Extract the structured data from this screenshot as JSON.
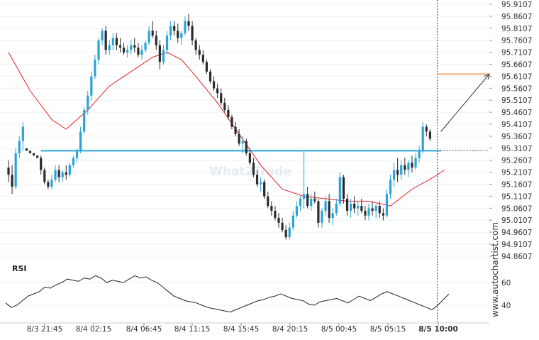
{
  "chart_data": {
    "type": "candlestick",
    "price_axis": {
      "ticks": [
        "95.9107",
        "95.8607",
        "95.8107",
        "95.7607",
        "95.7107",
        "95.6607",
        "95.6107",
        "95.5607",
        "95.5107",
        "95.4607",
        "95.4107",
        "95.3607",
        "95.3107",
        "95.2607",
        "95.2107",
        "95.1607",
        "95.1107",
        "95.0607",
        "95.0107",
        "94.9607",
        "94.9107",
        "94.8607"
      ],
      "ylim": [
        94.84,
        95.92
      ]
    },
    "time_axis": {
      "ticks": [
        "8/3 21:45",
        "8/4 02:15",
        "8/4 06:45",
        "8/4 11:15",
        "8/4 15:45",
        "8/4 20:15",
        "8/5 00:45",
        "8/5 05:15",
        "8/5 10:00"
      ],
      "current_label": "8/5 10:00"
    },
    "ohlc": [
      [
        95.23,
        95.26,
        95.17,
        95.2
      ],
      [
        95.2,
        95.24,
        95.12,
        95.15
      ],
      [
        95.15,
        95.31,
        95.14,
        95.29
      ],
      [
        95.29,
        95.36,
        95.27,
        95.34
      ],
      [
        95.34,
        95.42,
        95.3,
        95.4
      ],
      [
        95.31,
        95.31,
        95.3,
        95.3
      ],
      [
        95.3,
        95.3,
        95.29,
        95.29
      ],
      [
        95.29,
        95.29,
        95.28,
        95.28
      ],
      [
        95.28,
        95.28,
        95.27,
        95.27
      ],
      [
        95.27,
        95.28,
        95.2,
        95.22
      ],
      [
        95.22,
        95.23,
        95.16,
        95.17
      ],
      [
        95.17,
        95.18,
        95.14,
        95.15
      ],
      [
        95.15,
        95.2,
        95.14,
        95.18
      ],
      [
        95.18,
        95.24,
        95.17,
        95.22
      ],
      [
        95.22,
        95.24,
        95.17,
        95.19
      ],
      [
        95.19,
        95.22,
        95.17,
        95.21
      ],
      [
        95.21,
        95.24,
        95.18,
        95.2
      ],
      [
        95.2,
        95.25,
        95.19,
        95.24
      ],
      [
        95.24,
        95.28,
        95.23,
        95.27
      ],
      [
        95.27,
        95.31,
        95.25,
        95.3
      ],
      [
        95.3,
        95.4,
        95.29,
        95.38
      ],
      [
        95.38,
        95.48,
        95.37,
        95.47
      ],
      [
        95.47,
        95.55,
        95.45,
        95.53
      ],
      [
        95.53,
        95.63,
        95.51,
        95.61
      ],
      [
        95.61,
        95.7,
        95.6,
        95.68
      ],
      [
        95.68,
        95.77,
        95.66,
        95.76
      ],
      [
        95.76,
        95.81,
        95.74,
        95.8
      ],
      [
        95.8,
        95.82,
        95.7,
        95.72
      ],
      [
        95.72,
        95.76,
        95.7,
        95.74
      ],
      [
        95.74,
        95.79,
        95.72,
        95.77
      ],
      [
        95.77,
        95.79,
        95.72,
        95.74
      ],
      [
        95.74,
        95.77,
        95.71,
        95.73
      ],
      [
        95.73,
        95.75,
        95.7,
        95.71
      ],
      [
        95.71,
        95.74,
        95.69,
        95.72
      ],
      [
        95.72,
        95.76,
        95.7,
        95.74
      ],
      [
        95.74,
        95.77,
        95.71,
        95.73
      ],
      [
        95.73,
        95.75,
        95.69,
        95.7
      ],
      [
        95.7,
        95.74,
        95.68,
        95.72
      ],
      [
        95.72,
        95.76,
        95.71,
        95.75
      ],
      [
        95.75,
        95.82,
        95.74,
        95.8
      ],
      [
        95.8,
        95.84,
        95.77,
        95.78
      ],
      [
        95.78,
        95.8,
        95.72,
        95.74
      ],
      [
        95.74,
        95.76,
        95.64,
        95.67
      ],
      [
        95.67,
        95.74,
        95.66,
        95.72
      ],
      [
        95.72,
        95.8,
        95.7,
        95.78
      ],
      [
        95.78,
        95.84,
        95.76,
        95.82
      ],
      [
        95.82,
        95.84,
        95.78,
        95.8
      ],
      [
        95.8,
        95.83,
        95.75,
        95.77
      ],
      [
        95.77,
        95.8,
        95.74,
        95.79
      ],
      [
        95.79,
        95.86,
        95.78,
        95.84
      ],
      [
        95.84,
        95.87,
        95.8,
        95.82
      ],
      [
        95.82,
        95.84,
        95.74,
        95.76
      ],
      [
        95.76,
        95.77,
        95.7,
        95.72
      ],
      [
        95.72,
        95.74,
        95.68,
        95.7
      ],
      [
        95.7,
        95.72,
        95.66,
        95.67
      ],
      [
        95.67,
        95.68,
        95.62,
        95.63
      ],
      [
        95.63,
        95.64,
        95.58,
        95.59
      ],
      [
        95.59,
        95.61,
        95.55,
        95.56
      ],
      [
        95.56,
        95.58,
        95.52,
        95.54
      ],
      [
        95.54,
        95.56,
        95.49,
        95.5
      ],
      [
        95.5,
        95.52,
        95.46,
        95.47
      ],
      [
        95.47,
        95.49,
        95.43,
        95.44
      ],
      [
        95.44,
        95.45,
        95.39,
        95.4
      ],
      [
        95.4,
        95.42,
        95.36,
        95.37
      ],
      [
        95.37,
        95.39,
        95.32,
        95.33
      ],
      [
        95.33,
        95.36,
        95.29,
        95.34
      ],
      [
        95.34,
        95.35,
        95.28,
        95.29
      ],
      [
        95.29,
        95.31,
        95.24,
        95.25
      ],
      [
        95.25,
        95.27,
        95.19,
        95.2
      ],
      [
        95.2,
        95.22,
        95.15,
        95.16
      ],
      [
        95.16,
        95.19,
        95.13,
        95.17
      ],
      [
        95.17,
        95.18,
        95.1,
        95.11
      ],
      [
        95.11,
        95.13,
        95.06,
        95.07
      ],
      [
        95.07,
        95.09,
        95.03,
        95.05
      ],
      [
        95.05,
        95.07,
        95.01,
        95.02
      ],
      [
        95.02,
        95.04,
        94.98,
        95.0
      ],
      [
        95.0,
        95.02,
        94.96,
        94.97
      ],
      [
        94.97,
        94.99,
        94.93,
        94.94
      ],
      [
        94.94,
        95.0,
        94.93,
        94.98
      ],
      [
        94.98,
        95.05,
        94.97,
        95.03
      ],
      [
        95.03,
        95.09,
        95.02,
        95.07
      ],
      [
        95.07,
        95.11,
        95.05,
        95.1
      ],
      [
        95.1,
        95.3,
        95.06,
        95.12
      ],
      [
        95.12,
        95.15,
        95.06,
        95.07
      ],
      [
        95.07,
        95.12,
        95.05,
        95.1
      ],
      [
        95.1,
        95.13,
        95.08,
        95.09
      ],
      [
        95.09,
        95.1,
        94.98,
        95.0
      ],
      [
        95.0,
        95.06,
        94.98,
        95.05
      ],
      [
        95.05,
        95.11,
        95.03,
        95.09
      ],
      [
        95.09,
        95.12,
        95.0,
        95.02
      ],
      [
        95.02,
        95.06,
        94.99,
        95.04
      ],
      [
        95.04,
        95.1,
        95.03,
        95.08
      ],
      [
        95.08,
        95.21,
        95.07,
        95.19
      ],
      [
        95.19,
        95.2,
        95.08,
        95.1
      ],
      [
        95.1,
        95.12,
        95.03,
        95.05
      ],
      [
        95.05,
        95.1,
        95.02,
        95.08
      ],
      [
        95.08,
        95.11,
        95.04,
        95.06
      ],
      [
        95.06,
        95.09,
        95.03,
        95.07
      ],
      [
        95.07,
        95.1,
        95.04,
        95.05
      ],
      [
        95.05,
        95.07,
        95.01,
        95.03
      ],
      [
        95.03,
        95.08,
        95.01,
        95.06
      ],
      [
        95.06,
        95.09,
        95.03,
        95.05
      ],
      [
        95.05,
        95.08,
        95.02,
        95.07
      ],
      [
        95.07,
        95.09,
        95.02,
        95.04
      ],
      [
        95.04,
        95.06,
        95.01,
        95.03
      ],
      [
        95.03,
        95.14,
        95.02,
        95.12
      ],
      [
        95.12,
        95.2,
        95.1,
        95.18
      ],
      [
        95.18,
        95.25,
        95.15,
        95.22
      ],
      [
        95.22,
        95.27,
        95.17,
        95.2
      ],
      [
        95.2,
        95.26,
        95.18,
        95.24
      ],
      [
        95.24,
        95.27,
        95.2,
        95.22
      ],
      [
        95.22,
        95.26,
        95.19,
        95.25
      ],
      [
        95.25,
        95.28,
        95.21,
        95.23
      ],
      [
        95.23,
        95.29,
        95.22,
        95.27
      ],
      [
        95.27,
        95.32,
        95.25,
        95.3
      ],
      [
        95.3,
        95.42,
        95.29,
        95.4
      ],
      [
        95.4,
        95.41,
        95.36,
        95.38
      ],
      [
        95.38,
        95.39,
        95.34,
        95.35
      ]
    ],
    "moving_average": [
      [
        0,
        95.71
      ],
      [
        6,
        95.55
      ],
      [
        12,
        95.43
      ],
      [
        16,
        95.39
      ],
      [
        22,
        95.47
      ],
      [
        28,
        95.57
      ],
      [
        34,
        95.63
      ],
      [
        40,
        95.69
      ],
      [
        44,
        95.71
      ],
      [
        48,
        95.68
      ],
      [
        52,
        95.61
      ],
      [
        58,
        95.5
      ],
      [
        64,
        95.37
      ],
      [
        70,
        95.24
      ],
      [
        76,
        95.14
      ],
      [
        82,
        95.11
      ],
      [
        88,
        95.1
      ],
      [
        94,
        95.09
      ],
      [
        100,
        95.09
      ],
      [
        106,
        95.07
      ],
      [
        112,
        95.14
      ],
      [
        118,
        95.19
      ],
      [
        121,
        95.22
      ]
    ],
    "support_level": 95.3,
    "target_level": 95.62,
    "forecast_arrow": {
      "from": 95.38,
      "to": 95.62
    },
    "rsi": {
      "label": "RSI",
      "levels": [
        60,
        40
      ],
      "values": [
        42,
        38,
        40,
        44,
        48,
        50,
        52,
        56,
        55,
        58,
        60,
        63,
        62,
        61,
        64,
        63,
        66,
        64,
        60,
        62,
        61,
        60,
        63,
        66,
        64,
        65,
        62,
        60,
        56,
        52,
        48,
        46,
        44,
        43,
        42,
        40,
        38,
        37,
        36,
        35,
        34,
        36,
        38,
        40,
        42,
        44,
        45,
        47,
        48,
        50,
        48,
        46,
        45,
        44,
        41,
        40,
        43,
        44,
        45,
        46,
        44,
        42,
        45,
        48,
        46,
        44,
        47,
        50,
        52,
        50,
        48,
        46,
        44,
        42,
        40,
        38,
        36,
        40,
        45,
        50
      ]
    },
    "watermark": "What2Trade",
    "credit": "www.autochartist.com"
  }
}
